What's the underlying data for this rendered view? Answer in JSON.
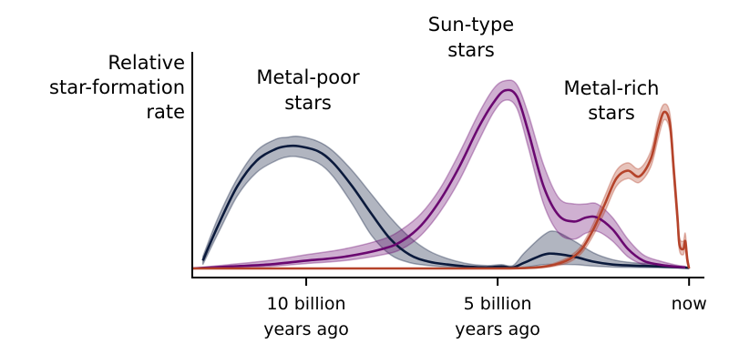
{
  "chart_data": {
    "type": "line",
    "ylabel_lines": [
      "Relative",
      "star-formation",
      "rate"
    ],
    "xlim": [
      13,
      -0.4
    ],
    "ylim": [
      0,
      1
    ],
    "x_ticks": [
      {
        "value": 10,
        "lines": [
          "10 billion",
          "years ago"
        ]
      },
      {
        "value": 5,
        "lines": [
          "5 billion",
          "years ago"
        ]
      },
      {
        "value": 0,
        "lines": [
          "now"
        ]
      }
    ],
    "grid": false,
    "legend": "none",
    "series": [
      {
        "name": "Metal-poor stars",
        "label_lines": [
          "Metal-poor",
          "stars"
        ],
        "color": "#0b1a3c",
        "x": [
          12.7,
          12.3,
          11.8,
          11.3,
          10.8,
          10.5,
          10.2,
          9.7,
          9.3,
          8.8,
          8.3,
          7.8,
          7.3,
          6.8,
          6.3,
          5.8,
          5.3,
          4.9,
          4.6,
          4.3,
          3.8,
          3.5,
          3.0,
          2.5,
          2.0,
          1.5,
          1.0,
          0.5,
          0.2,
          0.0
        ],
        "y": [
          0.04,
          0.22,
          0.42,
          0.55,
          0.61,
          0.625,
          0.625,
          0.6,
          0.54,
          0.42,
          0.28,
          0.15,
          0.07,
          0.035,
          0.02,
          0.01,
          0.005,
          0.01,
          0.005,
          0.03,
          0.07,
          0.075,
          0.06,
          0.035,
          0.02,
          0.015,
          0.012,
          0.008,
          0.005,
          0.003
        ],
        "y_low": [
          0.02,
          0.18,
          0.37,
          0.49,
          0.55,
          0.57,
          0.57,
          0.54,
          0.47,
          0.33,
          0.17,
          0.07,
          0.03,
          0.015,
          0.008,
          0.004,
          0.002,
          0.004,
          0.002,
          0.005,
          0.02,
          0.02,
          0.02,
          0.012,
          0.007,
          0.005,
          0.004,
          0.003,
          0.002,
          0.001
        ],
        "y_high": [
          0.06,
          0.26,
          0.46,
          0.6,
          0.66,
          0.67,
          0.675,
          0.65,
          0.6,
          0.5,
          0.38,
          0.26,
          0.16,
          0.09,
          0.05,
          0.025,
          0.015,
          0.02,
          0.015,
          0.08,
          0.17,
          0.19,
          0.14,
          0.08,
          0.045,
          0.03,
          0.025,
          0.015,
          0.01,
          0.006
        ]
      },
      {
        "name": "Sun-type stars",
        "label_lines": [
          "Sun-type",
          "stars"
        ],
        "color": "#6a0870",
        "x": [
          13.0,
          12.0,
          11.0,
          10.0,
          9.0,
          8.0,
          7.5,
          7.0,
          6.5,
          6.0,
          5.5,
          5.1,
          4.8,
          4.5,
          4.2,
          3.8,
          3.4,
          3.0,
          2.7,
          2.4,
          2.0,
          1.6,
          1.2,
          0.8,
          0.4,
          0.1
        ],
        "y": [
          0.0,
          0.01,
          0.02,
          0.04,
          0.06,
          0.1,
          0.14,
          0.22,
          0.35,
          0.52,
          0.72,
          0.85,
          0.91,
          0.88,
          0.7,
          0.42,
          0.27,
          0.24,
          0.26,
          0.26,
          0.2,
          0.1,
          0.04,
          0.02,
          0.01,
          0.005
        ],
        "y_low": [
          0.0,
          0.005,
          0.01,
          0.025,
          0.04,
          0.07,
          0.1,
          0.17,
          0.29,
          0.45,
          0.65,
          0.8,
          0.86,
          0.82,
          0.62,
          0.33,
          0.18,
          0.15,
          0.18,
          0.19,
          0.14,
          0.06,
          0.02,
          0.01,
          0.005,
          0.002
        ],
        "y_high": [
          0.0,
          0.02,
          0.04,
          0.07,
          0.1,
          0.15,
          0.2,
          0.28,
          0.41,
          0.59,
          0.79,
          0.92,
          0.96,
          0.94,
          0.79,
          0.53,
          0.36,
          0.33,
          0.33,
          0.33,
          0.26,
          0.15,
          0.07,
          0.04,
          0.02,
          0.01
        ]
      },
      {
        "name": "Metal-rich stars",
        "label_lines": [
          "Metal-rich",
          "stars"
        ],
        "color": "#b5432a",
        "x": [
          13.0,
          8.0,
          5.0,
          4.0,
          3.5,
          3.1,
          2.8,
          2.5,
          2.2,
          1.9,
          1.6,
          1.3,
          1.0,
          0.8,
          0.65,
          0.5,
          0.4,
          0.3,
          0.25,
          0.15,
          0.1,
          0.05,
          0.0
        ],
        "y": [
          0.0,
          0.0,
          0.0,
          0.005,
          0.02,
          0.05,
          0.1,
          0.2,
          0.33,
          0.46,
          0.5,
          0.47,
          0.56,
          0.72,
          0.8,
          0.74,
          0.5,
          0.25,
          0.12,
          0.1,
          0.14,
          0.05,
          0.0
        ],
        "y_low": [
          0.0,
          0.0,
          0.0,
          0.002,
          0.012,
          0.035,
          0.08,
          0.17,
          0.29,
          0.42,
          0.46,
          0.44,
          0.52,
          0.67,
          0.76,
          0.7,
          0.46,
          0.21,
          0.09,
          0.07,
          0.1,
          0.03,
          0.0
        ],
        "y_high": [
          0.0,
          0.0,
          0.0,
          0.008,
          0.028,
          0.065,
          0.12,
          0.23,
          0.37,
          0.5,
          0.54,
          0.51,
          0.6,
          0.77,
          0.84,
          0.79,
          0.55,
          0.3,
          0.16,
          0.14,
          0.18,
          0.08,
          0.0
        ]
      }
    ]
  }
}
